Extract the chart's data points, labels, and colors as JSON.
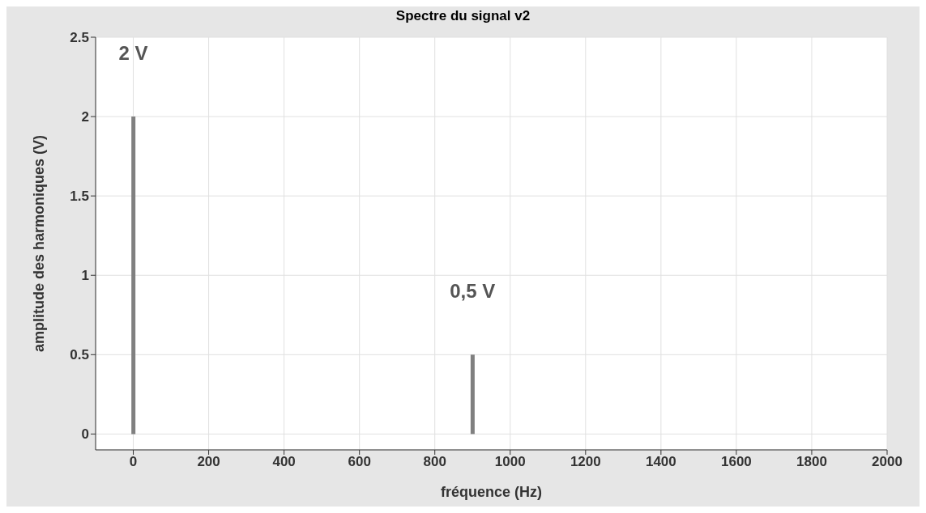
{
  "chart_data": {
    "type": "bar",
    "title": "Spectre du signal v2",
    "xlabel": "fréquence (Hz)",
    "ylabel": "amplitude des harmoniques (V)",
    "x": [
      0,
      900
    ],
    "series": [
      {
        "color": "#808080",
        "values": [
          2,
          0.5
        ]
      }
    ],
    "annotations": [
      "2 V",
      "0,5 V"
    ],
    "xlim": [
      -100,
      2000
    ],
    "xticks": [
      0,
      200,
      400,
      600,
      800,
      1000,
      1200,
      1400,
      1600,
      1800,
      2000
    ],
    "ylim": [
      -0.1,
      2.5
    ],
    "yticks": [
      0,
      0.5,
      1,
      1.5,
      2,
      2.5
    ],
    "grid": true
  }
}
